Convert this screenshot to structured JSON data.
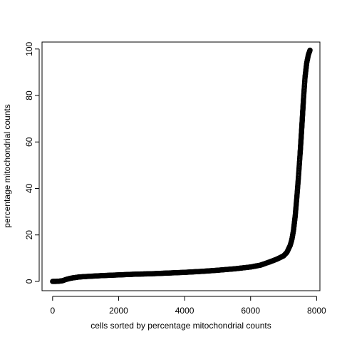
{
  "chart_data": {
    "type": "scatter",
    "xlabel": "cells sorted by percentage mitochondrial counts",
    "ylabel": "percentage mitochondrial counts",
    "xlim": [
      -320,
      8100
    ],
    "ylim": [
      -4,
      103
    ],
    "x_ticks": [
      0,
      2000,
      4000,
      6000,
      8000
    ],
    "y_ticks": [
      0,
      20,
      40,
      60,
      80,
      100
    ],
    "grid": false,
    "marker": "open-circle",
    "n_points": 7800,
    "series": [
      {
        "color": "#000000",
        "curve": [
          [
            0,
            0
          ],
          [
            100,
            0
          ],
          [
            200,
            0.1
          ],
          [
            300,
            0.3
          ],
          [
            400,
            0.8
          ],
          [
            500,
            1.2
          ],
          [
            600,
            1.5
          ],
          [
            800,
            1.9
          ],
          [
            1000,
            2.1
          ],
          [
            1500,
            2.5
          ],
          [
            2000,
            2.8
          ],
          [
            2500,
            3.1
          ],
          [
            3000,
            3.3
          ],
          [
            3500,
            3.6
          ],
          [
            4000,
            3.9
          ],
          [
            4500,
            4.3
          ],
          [
            5000,
            4.8
          ],
          [
            5500,
            5.4
          ],
          [
            6000,
            6.2
          ],
          [
            6300,
            7.0
          ],
          [
            6600,
            8.5
          ],
          [
            6800,
            9.6
          ],
          [
            7000,
            11.0
          ],
          [
            7100,
            12.5
          ],
          [
            7200,
            15.5
          ],
          [
            7250,
            18.0
          ],
          [
            7300,
            22.0
          ],
          [
            7350,
            28.0
          ],
          [
            7400,
            36.0
          ],
          [
            7450,
            45.0
          ],
          [
            7500,
            55.0
          ],
          [
            7550,
            66.0
          ],
          [
            7600,
            78.0
          ],
          [
            7650,
            88.0
          ],
          [
            7700,
            94.0
          ],
          [
            7750,
            97.5
          ],
          [
            7800,
            99.5
          ]
        ]
      }
    ]
  }
}
